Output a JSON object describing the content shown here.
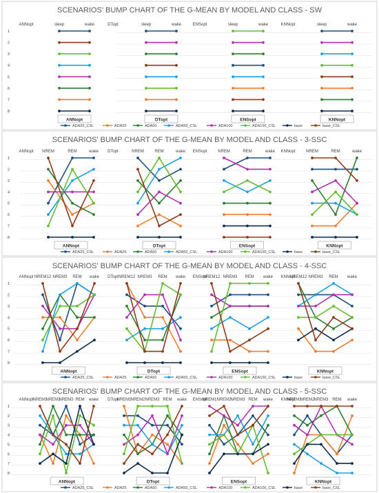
{
  "colors": {
    "ADA25_CSL": "#1f4e79",
    "ADA25": "#ed7d31",
    "ADA50": "#2e7d32",
    "ADA50_CSL": "#1ea0e0",
    "ADA100": "#b030b0",
    "ADA100_CSL": "#66bb33",
    "base": "#0d2a4a",
    "base_CSL": "#8b3a1a"
  },
  "chart_data": [
    {
      "type": "line",
      "title": "SCENARIOS' BUMP CHART OF THE G-MEAN BY MODEL AND CLASS - SW",
      "ranks": [
        "1",
        "2",
        "3",
        "4",
        "5",
        "6",
        "7",
        "8"
      ],
      "models": [
        "ANNopt",
        "DTopt",
        "ENSopt",
        "KNNopt"
      ],
      "classes": [
        "sleep",
        "wake"
      ],
      "legend": [
        "ADA25_CSL",
        "ADA25",
        "ADA50",
        "ADA50_CSL",
        "ADA100",
        "ADA100_CSL",
        "base",
        "base_CSL"
      ],
      "series": {
        "ANNopt": {
          "ADA25_CSL": [
            1,
            1
          ],
          "base_CSL": [
            2,
            2
          ],
          "ADA100_CSL": [
            3,
            3
          ],
          "ADA50_CSL": [
            4,
            4
          ],
          "ADA100": [
            5,
            5
          ],
          "ADA50": [
            6,
            6
          ],
          "ADA25": [
            7,
            7
          ],
          "base": [
            8,
            8
          ]
        },
        "DTopt": {
          "ADA25_CSL": [
            1,
            1
          ],
          "ADA100": [
            2,
            2
          ],
          "ADA50": [
            3,
            3
          ],
          "base_CSL": [
            4,
            4
          ],
          "ADA50_CSL": [
            5,
            5
          ],
          "ADA100_CSL": [
            6,
            6
          ],
          "ADA25": [
            7,
            7
          ],
          "base": [
            8,
            8
          ]
        },
        "ENSopt": {
          "ADA100_CSL": [
            1,
            1
          ],
          "ADA100": [
            2,
            2
          ],
          "ADA50": [
            3,
            3
          ],
          "ADA25_CSL": [
            4,
            4
          ],
          "ADA50_CSL": [
            5,
            5
          ],
          "ADA25": [
            6,
            6
          ],
          "base_CSL": [
            7,
            7
          ],
          "base": [
            8,
            8
          ]
        },
        "KNNopt": {
          "ADA25_CSL": [
            1,
            1
          ],
          "ADA100": [
            2,
            2
          ],
          "ADA50_CSL": [
            3,
            3
          ],
          "ADA100_CSL": [
            4,
            4
          ],
          "base_CSL": [
            5,
            5
          ],
          "ADA25": [
            6,
            6
          ],
          "ADA50": [
            7,
            7
          ],
          "base": [
            8,
            8
          ]
        }
      }
    },
    {
      "type": "line",
      "title": "SCENARIOS' BUMP CHART OF THE G-MEAN BY MODEL AND CLASS - 3-SSC",
      "ranks": [
        "1",
        "2",
        "3",
        "4",
        "5",
        "6",
        "7",
        "8"
      ],
      "models": [
        "ANNopt",
        "DTopt",
        "ENSopt",
        "KNNopt"
      ],
      "classes": [
        "NREM",
        "REM",
        "wake"
      ],
      "legend": [
        "ADA25_CSL",
        "ADA25",
        "ADA50",
        "ADA50_CSL",
        "ADA100",
        "ADA100_CSL",
        "base",
        "base_CSL"
      ],
      "series": {
        "ANNopt": {
          "ADA25_CSL": [
            5,
            1,
            1
          ],
          "ADA25": [
            3,
            6,
            5
          ],
          "ADA50": [
            2,
            5,
            6
          ],
          "ADA50_CSL": [
            6,
            3,
            2
          ],
          "ADA100": [
            4,
            4,
            4
          ],
          "ADA100_CSL": [
            7,
            2,
            5
          ],
          "base": [
            8,
            8,
            8
          ],
          "base_CSL": [
            1,
            7,
            3
          ]
        },
        "DTopt": {
          "ADA25_CSL": [
            1,
            3,
            2
          ],
          "ADA25": [
            7,
            6,
            7
          ],
          "ADA50": [
            3,
            5,
            3
          ],
          "ADA50_CSL": [
            5,
            2,
            1
          ],
          "ADA100": [
            6,
            4,
            5
          ],
          "ADA100_CSL": [
            4,
            1,
            4
          ],
          "base": [
            8,
            8,
            8
          ],
          "base_CSL": [
            2,
            7,
            6
          ]
        },
        "ENSopt": {
          "ADA25_CSL": [
            2,
            1,
            1
          ],
          "ADA25": [
            6,
            6,
            6
          ],
          "ADA50": [
            5,
            5,
            5
          ],
          "ADA50_CSL": [
            3,
            4,
            3
          ],
          "ADA100": [
            1,
            2,
            2
          ],
          "ADA100_CSL": [
            4,
            3,
            4
          ],
          "base": [
            7,
            7,
            7
          ],
          "base_CSL": [
            8,
            8,
            8
          ]
        },
        "KNNopt": {
          "ADA25_CSL": [
            2,
            2,
            2
          ],
          "ADA25": [
            7,
            7,
            5
          ],
          "ADA50": [
            3,
            6,
            1
          ],
          "ADA50_CSL": [
            5,
            5,
            6
          ],
          "ADA100": [
            4,
            3,
            5
          ],
          "ADA100_CSL": [
            6,
            4,
            6
          ],
          "base": [
            8,
            8,
            8
          ],
          "base_CSL": [
            1,
            1,
            3
          ]
        }
      }
    },
    {
      "type": "line",
      "title": "SCENARIOS' BUMP CHART OF THE G-MEAN BY MODEL AND CLASS - 4-SSC",
      "ranks": [
        "1",
        "2",
        "3",
        "4",
        "5",
        "6",
        "7",
        "8"
      ],
      "models": [
        "ANNopt",
        "DTopt",
        "ENSopt",
        "KNNopt"
      ],
      "classes": [
        "NREM12",
        "NREM3",
        "REM",
        "wake"
      ],
      "legend": [
        "ADA25_CSL",
        "ADA25",
        "ADA50",
        "ADA50_CSL",
        "ADA100",
        "ADA100_CSL",
        "base",
        "base_CSL"
      ],
      "series": {
        "ANNopt": {
          "ADA25_CSL": [
            2,
            6,
            1,
            2
          ],
          "ADA25": [
            4,
            4,
            6,
            4
          ],
          "ADA50": [
            5,
            2,
            4,
            4
          ],
          "ADA50_CSL": [
            7,
            2,
            1,
            2
          ],
          "ADA100": [
            3,
            5,
            5,
            2
          ],
          "ADA100_CSL": [
            6,
            3,
            3,
            2
          ],
          "base": [
            8,
            8,
            7,
            6
          ],
          "base_CSL": [
            1,
            7,
            5,
            1
          ]
        },
        "DTopt": {
          "ADA25_CSL": [
            2,
            3,
            3,
            5
          ],
          "ADA25": [
            1,
            4,
            4,
            7
          ],
          "ADA50": [
            3,
            6,
            6,
            2
          ],
          "ADA50_CSL": [
            6,
            5,
            5,
            4
          ],
          "ADA100": [
            4,
            2,
            2,
            6
          ],
          "ADA100_CSL": [
            5,
            7,
            1,
            2
          ],
          "base": [
            8,
            8,
            8,
            8
          ],
          "base_CSL": [
            1,
            7,
            7,
            1
          ]
        },
        "ENSopt": {
          "ADA25_CSL": [
            3,
            2,
            2,
            2
          ],
          "ADA25": [
            6,
            6,
            7,
            7
          ],
          "ADA50": [
            4,
            3,
            3,
            3
          ],
          "ADA50_CSL": [
            5,
            4,
            5,
            4
          ],
          "ADA100": [
            2,
            3,
            3,
            3
          ],
          "ADA100_CSL": [
            7,
            1,
            1,
            1
          ],
          "base": [
            8,
            8,
            8,
            8
          ],
          "base_CSL": [
            1,
            7,
            6,
            5
          ]
        },
        "KNNopt": {
          "ADA25_CSL": [
            2,
            2,
            2,
            3
          ],
          "ADA25": [
            5,
            7,
            7,
            6
          ],
          "ADA50": [
            1,
            4,
            5,
            4
          ],
          "ADA50_CSL": [
            3,
            2,
            1,
            2
          ],
          "ADA100": [
            3,
            3,
            2,
            2
          ],
          "ADA100_CSL": [
            4,
            4,
            3,
            4
          ],
          "base": [
            6,
            5,
            6,
            5
          ],
          "base_CSL": [
            1,
            6,
            4,
            5
          ]
        }
      }
    },
    {
      "type": "line",
      "title": "SCENARIOS' BUMP CHART OF THE G-MEAN BY MODEL AND CLASS - 5-SSC",
      "ranks": [
        "1",
        "2",
        "3",
        "4",
        "5",
        "6",
        "7",
        "8"
      ],
      "models": [
        "ANNopt",
        "DTopt",
        "ENSopt",
        "KNNopt"
      ],
      "classes": [
        "NREM1",
        "NREM2",
        "NREM3",
        "REM",
        "wake"
      ],
      "legend": [
        "ADA25_CSL",
        "ADA25",
        "ADA50",
        "ADA50_CSL",
        "ADA100",
        "ADA100_CSL",
        "base",
        "base_CSL"
      ],
      "series": {
        "ANNopt": {
          "ADA25_CSL": [
            3,
            4,
            1,
            5,
            4
          ],
          "ADA25": [
            4,
            7,
            2,
            4,
            7
          ],
          "ADA50": [
            5,
            1,
            4,
            4,
            4
          ],
          "ADA50_CSL": [
            2,
            4,
            6,
            6,
            5
          ],
          "ADA100": [
            4,
            5,
            3,
            3,
            5
          ],
          "ADA100_CSL": [
            6,
            2,
            8,
            2,
            3
          ],
          "base": [
            7,
            6,
            7,
            1,
            5
          ],
          "base_CSL": [
            1,
            4,
            5,
            7,
            1
          ]
        },
        "DTopt": {
          "ADA25_CSL": [
            2,
            2,
            3,
            3,
            5
          ],
          "ADA25": [
            1,
            6,
            4,
            5,
            7
          ],
          "ADA50": [
            4,
            6,
            5,
            2,
            4
          ],
          "ADA50_CSL": [
            3,
            3,
            5,
            6,
            3
          ],
          "ADA100": [
            5,
            4,
            2,
            6,
            2
          ],
          "ADA100_CSL": [
            6,
            1,
            1,
            1,
            7
          ],
          "base": [
            8,
            7,
            8,
            8,
            4
          ],
          "base_CSL": [
            7,
            5,
            6,
            4,
            1
          ]
        },
        "ENSopt": {
          "ADA25_CSL": [
            3,
            5,
            4,
            2,
            4
          ],
          "ADA25": [
            7,
            3,
            5,
            7,
            6
          ],
          "ADA50": [
            6,
            2,
            6,
            6,
            3
          ],
          "ADA50_CSL": [
            4,
            4,
            2,
            5,
            2
          ],
          "ADA100": [
            1,
            2,
            3,
            1,
            1
          ],
          "ADA100_CSL": [
            5,
            4,
            6,
            3,
            8
          ],
          "base": [
            8,
            6,
            6,
            6,
            5
          ],
          "base_CSL": [
            2,
            1,
            4,
            3,
            1
          ]
        },
        "KNNopt": {
          "ADA25_CSL": [
            4,
            2,
            4,
            6,
            4
          ],
          "ADA25": [
            8,
            4,
            4,
            6,
            2
          ],
          "ADA50": [
            2,
            3,
            2,
            1,
            4
          ],
          "ADA50_CSL": [
            5,
            6,
            7,
            8,
            8
          ],
          "ADA100": [
            3,
            4,
            1,
            4,
            5
          ],
          "ADA100_CSL": [
            6,
            5,
            4,
            4,
            4
          ],
          "base": [
            7,
            5,
            5,
            7,
            7
          ],
          "base_CSL": [
            1,
            1,
            1,
            1,
            1
          ]
        }
      }
    }
  ]
}
